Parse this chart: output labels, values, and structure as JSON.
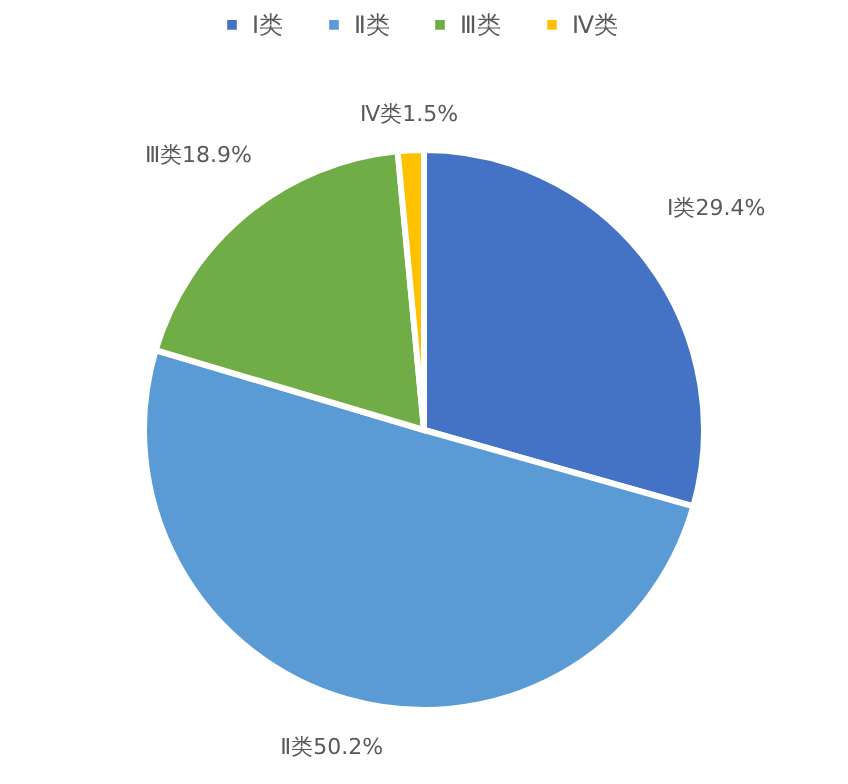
{
  "chart_data": {
    "type": "pie",
    "categories": [
      "Ⅰ类",
      "Ⅱ类",
      "Ⅲ类",
      "Ⅳ类"
    ],
    "values": [
      29.4,
      50.2,
      18.9,
      1.5
    ],
    "colors": [
      "#4472c4",
      "#5b9bd5",
      "#70ad47",
      "#ffc000"
    ],
    "value_labels": [
      "Ⅰ类29.4%",
      "Ⅱ类50.2%",
      "Ⅲ类18.9%",
      "Ⅳ类1.5%"
    ],
    "legend": "top"
  }
}
